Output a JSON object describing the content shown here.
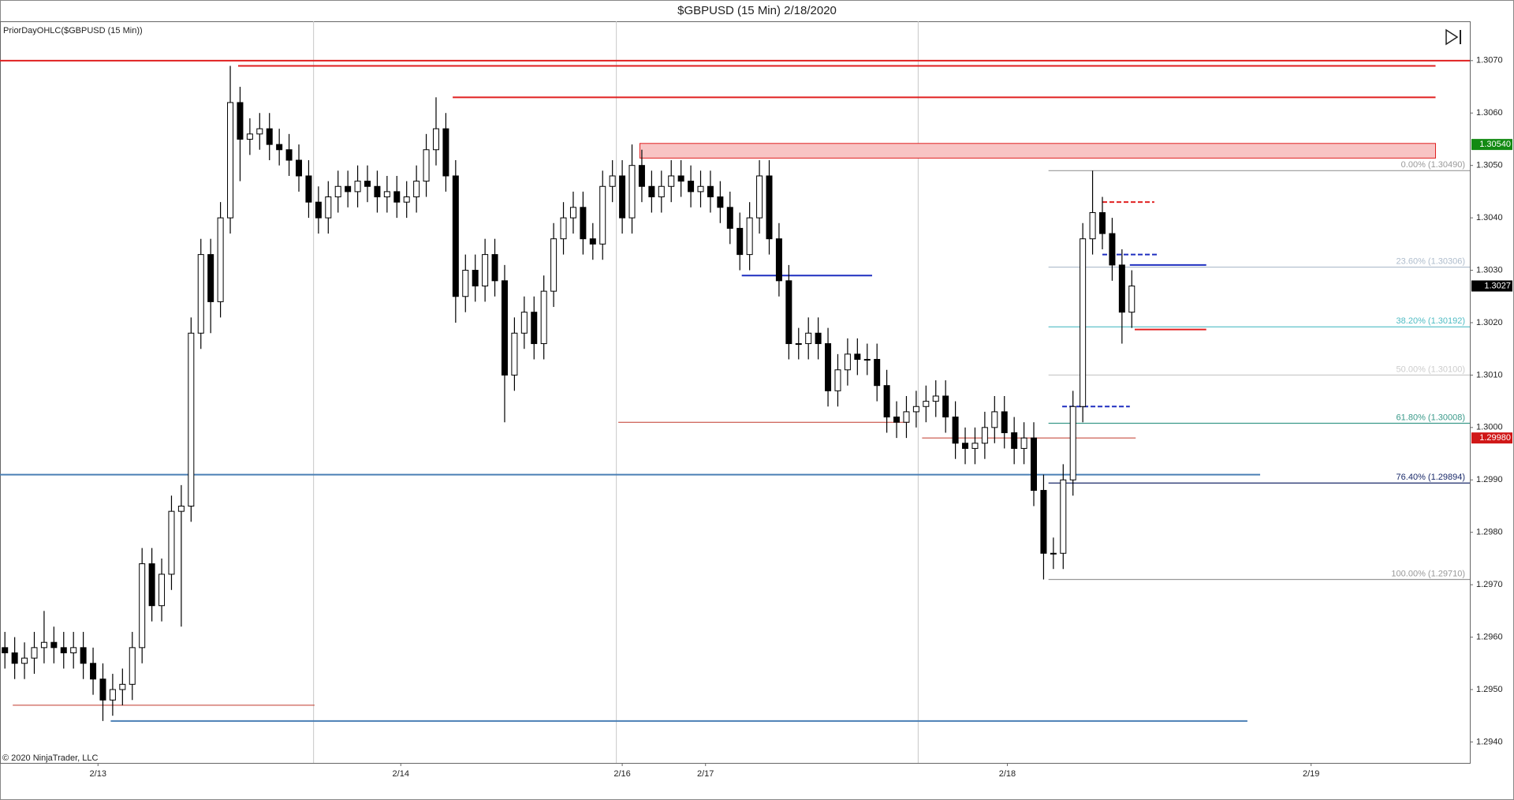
{
  "chart_data": {
    "type": "candlestick",
    "title": "$GBPUSD (15 Min)  2/18/2020",
    "indicator_label": "PriorDayOHLC($GBPUSD (15 Min))",
    "copyright": "© 2020 NinjaTrader, LLC",
    "xlim": [
      -0.5,
      149.5
    ],
    "xticks": [
      {
        "value": 9.5,
        "label": "2/13"
      },
      {
        "value": 40.4,
        "label": "2/14"
      },
      {
        "value": 63,
        "label": "2/16"
      },
      {
        "value": 71.5,
        "label": "2/17"
      },
      {
        "value": 102.3,
        "label": "2/18"
      },
      {
        "value": 133.3,
        "label": "2/19"
      }
    ],
    "session_breaks": [
      31.5,
      62.4,
      93.2
    ],
    "ylim": [
      1.2936,
      1.30775
    ],
    "yticks": [
      {
        "value": 1.294,
        "label": "1.2940"
      },
      {
        "value": 1.295,
        "label": "1.2950"
      },
      {
        "value": 1.296,
        "label": "1.2960"
      },
      {
        "value": 1.297,
        "label": "1.2970"
      },
      {
        "value": 1.298,
        "label": "1.2980"
      },
      {
        "value": 1.299,
        "label": "1.2990"
      },
      {
        "value": 1.3,
        "label": "1.3000"
      },
      {
        "value": 1.301,
        "label": "1.3010"
      },
      {
        "value": 1.302,
        "label": "1.3020"
      },
      {
        "value": 1.303,
        "label": "1.3030"
      },
      {
        "value": 1.304,
        "label": "1.3040"
      },
      {
        "value": 1.305,
        "label": "1.3050"
      },
      {
        "value": 1.306,
        "label": "1.3060"
      },
      {
        "value": 1.307,
        "label": "1.3070"
      }
    ],
    "up_color": "#ffffff",
    "down_color": "#000000",
    "open": [
      1.2958,
      1.2957,
      1.2955,
      1.2956,
      1.2958,
      1.2959,
      1.2958,
      1.2957,
      1.2958,
      1.2955,
      1.2952,
      1.2948,
      1.295,
      1.2951,
      1.2958,
      1.2974,
      1.2966,
      1.2972,
      1.2984,
      1.2985,
      1.3018,
      1.3033,
      1.3024,
      1.304,
      1.3062,
      1.3055,
      1.3056,
      1.3057,
      1.3054,
      1.3053,
      1.3051,
      1.3048,
      1.3043,
      1.304,
      1.3044,
      1.3046,
      1.3045,
      1.3047,
      1.3046,
      1.3044,
      1.3045,
      1.3043,
      1.3044,
      1.3047,
      1.3053,
      1.3057,
      1.3048,
      1.3025,
      1.303,
      1.3027,
      1.3033,
      1.3028,
      1.301,
      1.3018,
      1.3022,
      1.3016,
      1.3026,
      1.3036,
      1.304,
      1.3042,
      1.3036,
      1.3035,
      1.3046,
      1.3048,
      1.304,
      1.305,
      1.3046,
      1.3044,
      1.3046,
      1.3048,
      1.3047,
      1.3045,
      1.3046,
      1.3044,
      1.3042,
      1.3038,
      1.3033,
      1.304,
      1.3048,
      1.3036,
      1.3028,
      1.3016,
      1.3016,
      1.3018,
      1.3016,
      1.3007,
      1.3011,
      1.3014,
      1.3013,
      1.3013,
      1.3008,
      1.3002,
      1.3001,
      1.3003,
      1.3004,
      1.3005,
      1.3006,
      1.3002,
      1.2997,
      1.2996,
      1.2997,
      1.3,
      1.3003,
      1.2999,
      1.2996,
      1.2998,
      1.2988,
      1.2976,
      1.2976,
      1.299,
      1.3004,
      1.3036,
      1.3041,
      1.3037,
      1.3031,
      1.3022
    ],
    "high": [
      1.2961,
      1.296,
      1.2959,
      1.2961,
      1.2965,
      1.2962,
      1.2961,
      1.2961,
      1.2961,
      1.2958,
      1.2955,
      1.2953,
      1.2954,
      1.2961,
      1.2977,
      1.2977,
      1.2975,
      1.2987,
      1.2989,
      1.3021,
      1.3036,
      1.3036,
      1.3043,
      1.3069,
      1.3065,
      1.3059,
      1.306,
      1.306,
      1.3057,
      1.3056,
      1.3054,
      1.3051,
      1.3046,
      1.3047,
      1.3049,
      1.3049,
      1.305,
      1.305,
      1.3049,
      1.3048,
      1.3048,
      1.3047,
      1.305,
      1.3056,
      1.3063,
      1.306,
      1.3051,
      1.3033,
      1.3033,
      1.3036,
      1.3036,
      1.3031,
      1.3021,
      1.3025,
      1.3025,
      1.3029,
      1.3039,
      1.3043,
      1.3045,
      1.3045,
      1.3039,
      1.3049,
      1.3051,
      1.3051,
      1.3054,
      1.3053,
      1.3049,
      1.3049,
      1.3051,
      1.3051,
      1.305,
      1.3049,
      1.3049,
      1.3047,
      1.3045,
      1.3041,
      1.3043,
      1.3051,
      1.3051,
      1.3039,
      1.3031,
      1.3019,
      1.3021,
      1.3021,
      1.3019,
      1.3014,
      1.3017,
      1.3017,
      1.3016,
      1.3016,
      1.3011,
      1.3005,
      1.3006,
      1.3007,
      1.3008,
      1.3009,
      1.3009,
      1.3005,
      1.3,
      1.3,
      1.3003,
      1.3006,
      1.3006,
      1.3002,
      1.3001,
      1.3001,
      1.2991,
      1.2979,
      1.2993,
      1.3007,
      1.3039,
      1.3049,
      1.3044,
      1.304,
      1.3034,
      1.303
    ],
    "low": [
      1.2954,
      1.2952,
      1.2952,
      1.2953,
      1.2955,
      1.2955,
      1.2954,
      1.2954,
      1.2952,
      1.2949,
      1.2944,
      1.2945,
      1.2947,
      1.2948,
      1.2955,
      1.2963,
      1.2963,
      1.2969,
      1.2962,
      1.2982,
      1.3015,
      1.3018,
      1.3021,
      1.3037,
      1.3047,
      1.3052,
      1.3053,
      1.3051,
      1.305,
      1.3048,
      1.3045,
      1.304,
      1.3037,
      1.3037,
      1.3041,
      1.3042,
      1.3042,
      1.3043,
      1.3041,
      1.3041,
      1.304,
      1.304,
      1.3041,
      1.3044,
      1.305,
      1.3045,
      1.302,
      1.3022,
      1.3024,
      1.3024,
      1.3025,
      1.3001,
      1.3007,
      1.3015,
      1.3013,
      1.3013,
      1.3023,
      1.3033,
      1.3037,
      1.3033,
      1.3032,
      1.3032,
      1.3043,
      1.3037,
      1.3037,
      1.3043,
      1.3041,
      1.3041,
      1.3043,
      1.3044,
      1.3042,
      1.3042,
      1.3041,
      1.3039,
      1.3035,
      1.303,
      1.303,
      1.3037,
      1.3033,
      1.3025,
      1.3013,
      1.3013,
      1.3013,
      1.3013,
      1.3004,
      1.3004,
      1.3008,
      1.301,
      1.301,
      1.3005,
      1.2999,
      1.2998,
      1.2998,
      1.3,
      1.3001,
      1.3002,
      1.2999,
      1.2994,
      1.2993,
      1.2993,
      1.2994,
      1.2997,
      1.2996,
      1.2993,
      1.2993,
      1.2985,
      1.2971,
      1.2973,
      1.2973,
      1.2987,
      1.3001,
      1.3033,
      1.3034,
      1.3028,
      1.3016,
      1.3019
    ],
    "close": [
      1.2957,
      1.2955,
      1.2956,
      1.2958,
      1.2959,
      1.2958,
      1.2957,
      1.2958,
      1.2955,
      1.2952,
      1.2948,
      1.295,
      1.2951,
      1.2958,
      1.2974,
      1.2966,
      1.2972,
      1.2984,
      1.2985,
      1.3018,
      1.3033,
      1.3024,
      1.304,
      1.3062,
      1.3055,
      1.3056,
      1.3057,
      1.3054,
      1.3053,
      1.3051,
      1.3048,
      1.3043,
      1.304,
      1.3044,
      1.3046,
      1.3045,
      1.3047,
      1.3046,
      1.3044,
      1.3045,
      1.3043,
      1.3044,
      1.3047,
      1.3053,
      1.3057,
      1.3048,
      1.3025,
      1.303,
      1.3027,
      1.3033,
      1.3028,
      1.301,
      1.3018,
      1.3022,
      1.3016,
      1.3026,
      1.3036,
      1.304,
      1.3042,
      1.3036,
      1.3035,
      1.3046,
      1.3048,
      1.304,
      1.305,
      1.3046,
      1.3044,
      1.3046,
      1.3048,
      1.3047,
      1.3045,
      1.3046,
      1.3044,
      1.3042,
      1.3038,
      1.3033,
      1.304,
      1.3048,
      1.3036,
      1.3028,
      1.3016,
      1.3016,
      1.3018,
      1.3016,
      1.3007,
      1.3011,
      1.3014,
      1.3013,
      1.3013,
      1.3008,
      1.3002,
      1.3001,
      1.3003,
      1.3004,
      1.3005,
      1.3006,
      1.3002,
      1.2997,
      1.2996,
      1.2997,
      1.3,
      1.3003,
      1.2999,
      1.2996,
      1.2998,
      1.2988,
      1.2976,
      1.2976,
      1.299,
      1.3004,
      1.3036,
      1.3041,
      1.3037,
      1.3031,
      1.3022,
      1.3027
    ],
    "levels": [
      {
        "value": 1.307,
        "from": -0.5,
        "to": 149.5,
        "color": "#e02020",
        "style": "solid",
        "width": 2
      },
      {
        "value": 1.3069,
        "from": 23.8,
        "to": 146,
        "color": "#e02020",
        "style": "solid",
        "width": 2
      },
      {
        "value": 1.3063,
        "from": 45.7,
        "to": 146,
        "color": "#e02020",
        "style": "solid",
        "width": 2
      },
      {
        "value": 1.3043,
        "from": 112,
        "to": 117.3,
        "color": "#e02020",
        "style": "dashed",
        "width": 2
      },
      {
        "value": 1.3033,
        "from": 112,
        "to": 117.6,
        "color": "#1f2fc0",
        "style": "dashed",
        "width": 2
      },
      {
        "value": 1.3031,
        "from": 114.8,
        "to": 122.6,
        "color": "#1f2fc0",
        "style": "solid",
        "width": 2
      },
      {
        "value": 1.3029,
        "from": 75.2,
        "to": 88.5,
        "color": "#1f2fc0",
        "style": "solid",
        "width": 2
      },
      {
        "value": 1.30187,
        "from": 115.3,
        "to": 122.6,
        "color": "#e02020",
        "style": "solid",
        "width": 2
      },
      {
        "value": 1.3004,
        "from": 107.9,
        "to": 114.8,
        "color": "#1f2fc0",
        "style": "dashed",
        "width": 2
      },
      {
        "value": 1.3001,
        "from": 62.6,
        "to": 92.3,
        "color": "#c0392b",
        "style": "solid",
        "width": 1
      },
      {
        "value": 1.2998,
        "from": 93.6,
        "to": 115.4,
        "color": "#c0392b",
        "style": "solid",
        "width": 1
      },
      {
        "value": 1.2991,
        "from": -0.5,
        "to": 128.1,
        "color": "#4a7fb5",
        "style": "solid",
        "width": 2
      },
      {
        "value": 1.2947,
        "from": 0.8,
        "to": 31.6,
        "color": "#c0392b",
        "style": "solid",
        "width": 1
      },
      {
        "value": 1.2944,
        "from": 10.8,
        "to": 126.8,
        "color": "#4a7fb5",
        "style": "solid",
        "width": 2
      }
    ],
    "zone": {
      "low": 1.30514,
      "high": 1.30542,
      "from": 64.8,
      "to": 146,
      "color": "#f8c4c4",
      "border": "#e02020"
    },
    "fib": {
      "from": 106.5,
      "to": 149.5,
      "levels": [
        {
          "value": 1.3049,
          "label": "0.00% (1.30490)",
          "color": "#999999"
        },
        {
          "value": 1.30306,
          "label": "23.60% (1.30306)",
          "color": "#aebccc"
        },
        {
          "value": 1.30192,
          "label": "38.20% (1.30192)",
          "color": "#4fbcc4"
        },
        {
          "value": 1.301,
          "label": "50.00% (1.30100)",
          "color": "#cccccc"
        },
        {
          "value": 1.30008,
          "label": "61.80% (1.30008)",
          "color": "#3a9a8a"
        },
        {
          "value": 1.29894,
          "label": "76.40% (1.29894)",
          "color": "#1a2a6a"
        },
        {
          "value": 1.2971,
          "label": "100.00% (1.29710)",
          "color": "#999999"
        }
      ]
    },
    "price_markers": [
      {
        "value": 1.3054,
        "label": "1.30540",
        "color": "#138a13"
      },
      {
        "value": 1.3027,
        "label": "1.3027",
        "color": "#000000"
      },
      {
        "value": 1.2998,
        "label": "1.29980",
        "color": "#d01818"
      }
    ]
  }
}
